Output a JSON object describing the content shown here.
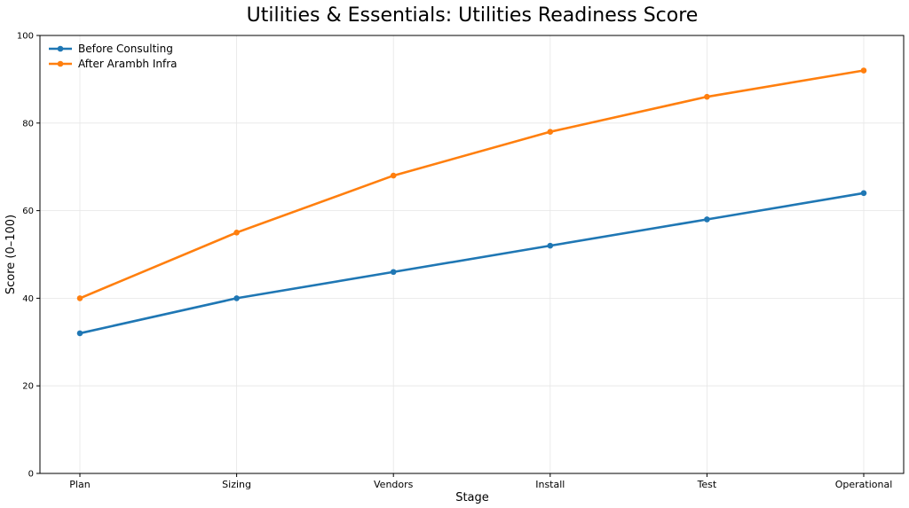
{
  "chart_data": {
    "type": "line",
    "title": "Utilities & Essentials: Utilities Readiness Score",
    "xlabel": "Stage",
    "ylabel": "Score (0–100)",
    "categories": [
      "Plan",
      "Sizing",
      "Vendors",
      "Install",
      "Test",
      "Operational"
    ],
    "ylim": [
      0,
      100
    ],
    "yticks": [
      0,
      20,
      40,
      60,
      80,
      100
    ],
    "grid": true,
    "legend_position": "top-left",
    "series": [
      {
        "name": "Before Consulting",
        "color": "#1f77b4",
        "values": [
          32,
          40,
          46,
          52,
          58,
          64
        ]
      },
      {
        "name": "After Arambh Infra",
        "color": "#ff7f0e",
        "values": [
          40,
          55,
          68,
          78,
          86,
          92
        ]
      }
    ]
  }
}
